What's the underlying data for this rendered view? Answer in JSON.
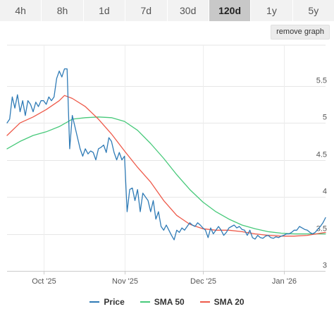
{
  "tabs": [
    {
      "label": "4h"
    },
    {
      "label": "8h"
    },
    {
      "label": "1d"
    },
    {
      "label": "7d"
    },
    {
      "label": "30d"
    },
    {
      "label": "120d",
      "active": true
    },
    {
      "label": "1y"
    },
    {
      "label": "5y"
    }
  ],
  "remove_graph_label": "remove graph",
  "chart_data": {
    "type": "line",
    "x_tick_labels": [
      "Oct '25",
      "Nov '25",
      "Dec '25",
      "Jan '26"
    ],
    "x_ticks_day": [
      14,
      45,
      75,
      106
    ],
    "y_ticks": [
      3,
      3.5,
      4,
      4.5,
      5,
      5.5
    ],
    "y_tick_labels": [
      "3",
      "3.5",
      "4",
      "4.5",
      "5",
      "5.5"
    ],
    "ylim": [
      3,
      6.05
    ],
    "xlim_day": [
      0,
      122
    ],
    "grid": true,
    "legend_position": "bottom-center",
    "colors": {
      "Price": "#2f7bb6",
      "SMA 50": "#47c97a",
      "SMA 20": "#ee5a4a"
    },
    "series": [
      {
        "name": "Price",
        "points": [
          [
            0,
            5.0
          ],
          [
            1,
            5.05
          ],
          [
            2,
            5.35
          ],
          [
            3,
            5.2
          ],
          [
            4,
            5.38
          ],
          [
            5,
            5.15
          ],
          [
            6,
            5.3
          ],
          [
            7,
            5.1
          ],
          [
            8,
            5.3
          ],
          [
            9,
            5.25
          ],
          [
            10,
            5.15
          ],
          [
            11,
            5.28
          ],
          [
            12,
            5.22
          ],
          [
            13,
            5.3
          ],
          [
            14,
            5.3
          ],
          [
            15,
            5.25
          ],
          [
            16,
            5.35
          ],
          [
            17,
            5.3
          ],
          [
            18,
            5.35
          ],
          [
            19,
            5.6
          ],
          [
            20,
            5.7
          ],
          [
            21,
            5.62
          ],
          [
            22,
            5.73
          ],
          [
            23,
            5.73
          ],
          [
            24,
            4.65
          ],
          [
            25,
            5.1
          ],
          [
            26,
            4.95
          ],
          [
            27,
            4.8
          ],
          [
            28,
            4.65
          ],
          [
            29,
            4.55
          ],
          [
            30,
            4.65
          ],
          [
            31,
            4.58
          ],
          [
            32,
            4.62
          ],
          [
            33,
            4.6
          ],
          [
            34,
            4.5
          ],
          [
            35,
            4.65
          ],
          [
            36,
            4.67
          ],
          [
            37,
            4.7
          ],
          [
            38,
            4.6
          ],
          [
            39,
            4.8
          ],
          [
            40,
            4.75
          ],
          [
            41,
            4.6
          ],
          [
            42,
            4.5
          ],
          [
            43,
            4.6
          ],
          [
            44,
            4.5
          ],
          [
            45,
            4.55
          ],
          [
            46,
            3.8
          ],
          [
            47,
            4.1
          ],
          [
            48,
            4.12
          ],
          [
            49,
            3.95
          ],
          [
            50,
            4.1
          ],
          [
            51,
            3.8
          ],
          [
            52,
            4.05
          ],
          [
            53,
            4.0
          ],
          [
            54,
            3.95
          ],
          [
            55,
            3.8
          ],
          [
            56,
            3.95
          ],
          [
            57,
            3.7
          ],
          [
            58,
            3.8
          ],
          [
            59,
            3.6
          ],
          [
            60,
            3.55
          ],
          [
            61,
            3.62
          ],
          [
            62,
            3.55
          ],
          [
            63,
            3.48
          ],
          [
            64,
            3.42
          ],
          [
            65,
            3.55
          ],
          [
            66,
            3.52
          ],
          [
            67,
            3.58
          ],
          [
            68,
            3.55
          ],
          [
            69,
            3.6
          ],
          [
            70,
            3.65
          ],
          [
            71,
            3.62
          ],
          [
            72,
            3.6
          ],
          [
            73,
            3.65
          ],
          [
            74,
            3.62
          ],
          [
            75,
            3.58
          ],
          [
            76,
            3.55
          ],
          [
            77,
            3.45
          ],
          [
            78,
            3.58
          ],
          [
            79,
            3.5
          ],
          [
            80,
            3.55
          ],
          [
            81,
            3.6
          ],
          [
            82,
            3.55
          ],
          [
            83,
            3.48
          ],
          [
            84,
            3.52
          ],
          [
            85,
            3.58
          ],
          [
            86,
            3.6
          ],
          [
            87,
            3.62
          ],
          [
            88,
            3.58
          ],
          [
            89,
            3.6
          ],
          [
            90,
            3.56
          ],
          [
            91,
            3.55
          ],
          [
            92,
            3.48
          ],
          [
            93,
            3.55
          ],
          [
            94,
            3.45
          ],
          [
            95,
            3.43
          ],
          [
            96,
            3.48
          ],
          [
            97,
            3.45
          ],
          [
            98,
            3.44
          ],
          [
            99,
            3.47
          ],
          [
            100,
            3.48
          ],
          [
            101,
            3.45
          ],
          [
            102,
            3.44
          ],
          [
            103,
            3.46
          ],
          [
            104,
            3.45
          ],
          [
            105,
            3.47
          ],
          [
            106,
            3.48
          ],
          [
            107,
            3.5
          ],
          [
            108,
            3.5
          ],
          [
            109,
            3.52
          ],
          [
            110,
            3.55
          ],
          [
            111,
            3.55
          ],
          [
            112,
            3.6
          ],
          [
            113,
            3.58
          ],
          [
            114,
            3.56
          ],
          [
            115,
            3.55
          ],
          [
            116,
            3.52
          ],
          [
            117,
            3.5
          ],
          [
            118,
            3.52
          ],
          [
            119,
            3.56
          ],
          [
            120,
            3.6
          ],
          [
            121,
            3.65
          ],
          [
            122,
            3.72
          ]
        ]
      },
      {
        "name": "SMA 50",
        "points": [
          [
            0,
            4.65
          ],
          [
            5,
            4.75
          ],
          [
            10,
            4.83
          ],
          [
            15,
            4.88
          ],
          [
            20,
            4.95
          ],
          [
            25,
            5.05
          ],
          [
            30,
            5.07
          ],
          [
            35,
            5.08
          ],
          [
            40,
            5.07
          ],
          [
            45,
            5.02
          ],
          [
            50,
            4.9
          ],
          [
            55,
            4.72
          ],
          [
            60,
            4.52
          ],
          [
            65,
            4.3
          ],
          [
            70,
            4.1
          ],
          [
            75,
            3.93
          ],
          [
            80,
            3.8
          ],
          [
            85,
            3.7
          ],
          [
            90,
            3.62
          ],
          [
            95,
            3.57
          ],
          [
            100,
            3.53
          ],
          [
            105,
            3.51
          ],
          [
            110,
            3.5
          ],
          [
            115,
            3.5
          ],
          [
            120,
            3.5
          ],
          [
            122,
            3.5
          ]
        ]
      },
      {
        "name": "SMA 20",
        "points": [
          [
            0,
            4.83
          ],
          [
            5,
            5.0
          ],
          [
            10,
            5.08
          ],
          [
            15,
            5.18
          ],
          [
            20,
            5.3
          ],
          [
            22,
            5.37
          ],
          [
            25,
            5.33
          ],
          [
            30,
            5.22
          ],
          [
            35,
            5.05
          ],
          [
            40,
            4.85
          ],
          [
            45,
            4.62
          ],
          [
            50,
            4.4
          ],
          [
            55,
            4.2
          ],
          [
            60,
            3.95
          ],
          [
            65,
            3.75
          ],
          [
            70,
            3.63
          ],
          [
            75,
            3.57
          ],
          [
            80,
            3.55
          ],
          [
            85,
            3.55
          ],
          [
            90,
            3.53
          ],
          [
            95,
            3.5
          ],
          [
            100,
            3.48
          ],
          [
            105,
            3.47
          ],
          [
            110,
            3.47
          ],
          [
            115,
            3.48
          ],
          [
            120,
            3.51
          ],
          [
            122,
            3.52
          ]
        ]
      }
    ]
  }
}
